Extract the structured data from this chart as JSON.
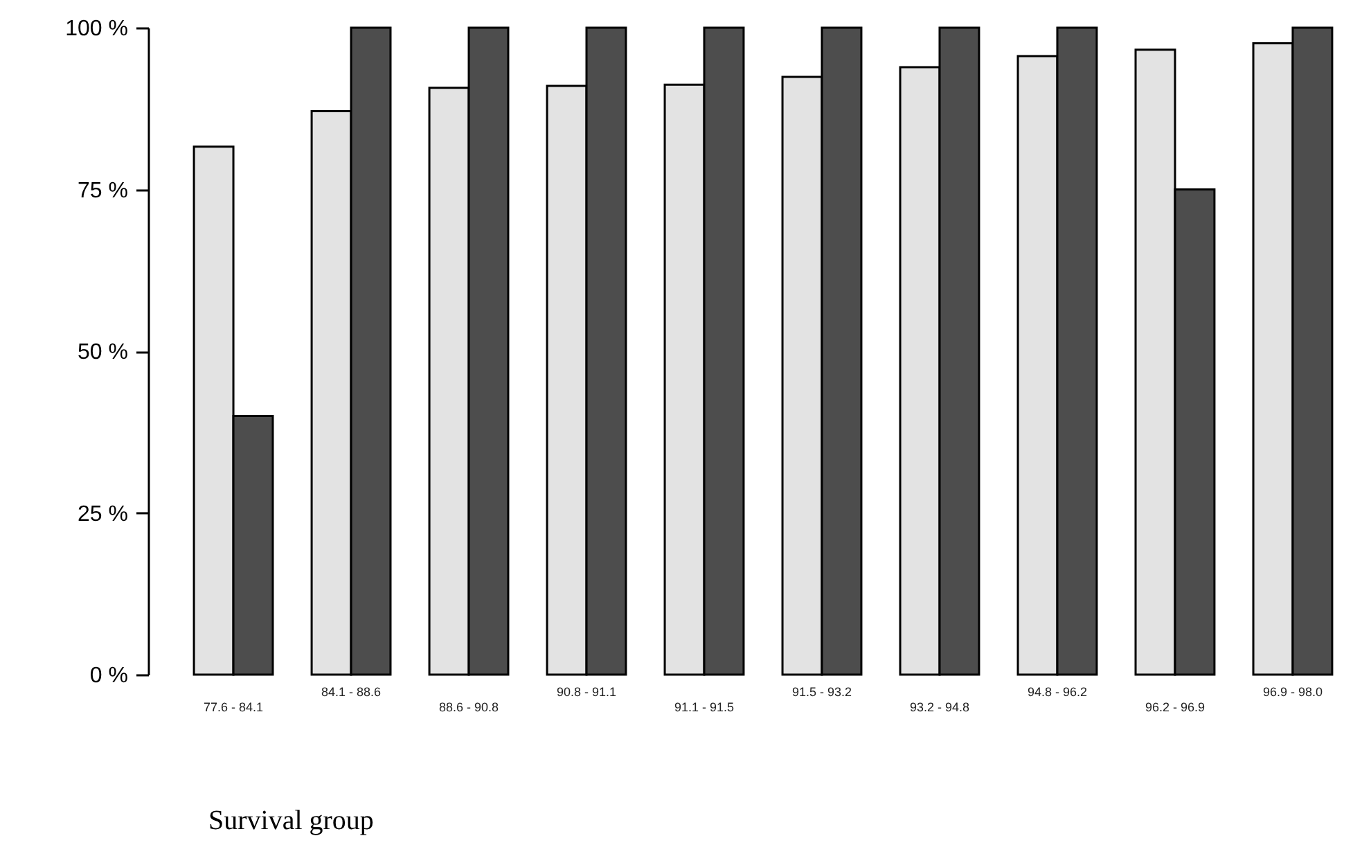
{
  "chart_data": {
    "type": "bar",
    "xlabel": "Survival group",
    "categories": [
      "77.6 - 84.1",
      "84.1 - 88.6",
      "88.6 - 90.8",
      "90.8 - 91.1",
      "91.1 - 91.5",
      "91.5 - 93.2",
      "93.2 - 94.8",
      "94.8 - 96.2",
      "96.2 - 96.9",
      "96.9 - 98.0"
    ],
    "series": [
      {
        "color": "#e3e3e3",
        "values": [
          81.6,
          87.1,
          90.7,
          91.0,
          91.2,
          92.4,
          93.9,
          95.6,
          96.6,
          97.6
        ]
      },
      {
        "color": "#4d4d4d",
        "values": [
          40,
          100,
          100,
          100,
          100,
          100,
          100,
          100,
          75,
          100
        ]
      }
    ],
    "ylim": [
      0,
      100
    ],
    "yticks": [
      {
        "value": 0,
        "label": "0 %"
      },
      {
        "value": 25,
        "label": "25 %"
      },
      {
        "value": 50,
        "label": "50 %"
      },
      {
        "value": 75,
        "label": "75 %"
      },
      {
        "value": 100,
        "label": "100 %"
      }
    ],
    "grid": false
  }
}
